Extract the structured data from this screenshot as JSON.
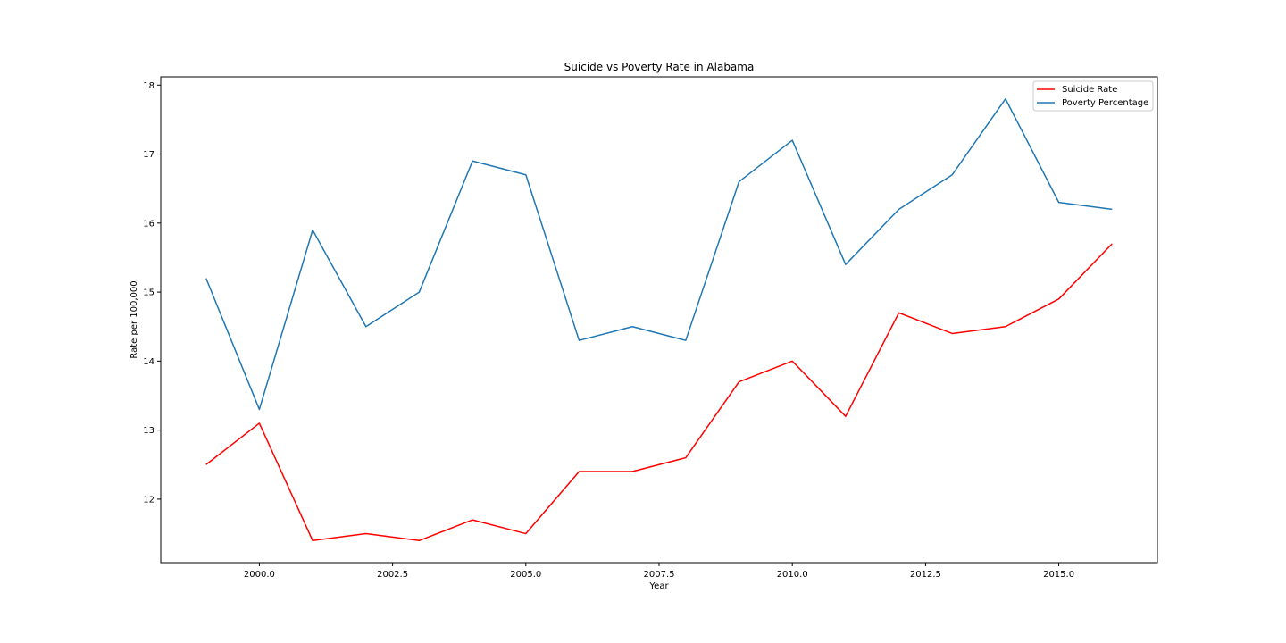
{
  "chart_data": {
    "type": "line",
    "title": "Suicide vs Poverty Rate in Alabama",
    "xlabel": "Year",
    "ylabel": "Rate per 100,000",
    "x": [
      1999,
      2000,
      2001,
      2002,
      2003,
      2004,
      2005,
      2006,
      2007,
      2008,
      2009,
      2010,
      2011,
      2012,
      2013,
      2014,
      2015,
      2016
    ],
    "series": [
      {
        "name": "Suicide Rate",
        "color": "#ff0000",
        "values": [
          12.5,
          13.1,
          11.4,
          11.5,
          11.4,
          11.7,
          11.5,
          12.4,
          12.4,
          12.6,
          13.7,
          14.0,
          13.2,
          14.7,
          14.4,
          14.5,
          14.9,
          15.7
        ]
      },
      {
        "name": "Poverty Percentage",
        "color": "#1f77b4",
        "values": [
          15.2,
          13.3,
          15.9,
          14.5,
          15.0,
          16.9,
          16.7,
          14.3,
          14.5,
          14.3,
          16.6,
          17.2,
          15.4,
          16.2,
          16.7,
          17.8,
          16.3,
          16.2
        ]
      }
    ],
    "xlim": [
      1998.15,
      2016.85
    ],
    "ylim": [
      11.08,
      18.12
    ],
    "xticks": [
      2000.0,
      2002.5,
      2005.0,
      2007.5,
      2010.0,
      2012.5,
      2015.0
    ],
    "xtick_labels": [
      "2000.0",
      "2002.5",
      "2005.0",
      "2007.5",
      "2010.0",
      "2012.5",
      "2015.0"
    ],
    "yticks": [
      12,
      13,
      14,
      15,
      16,
      17,
      18
    ],
    "ytick_labels": [
      "12",
      "13",
      "14",
      "15",
      "16",
      "17",
      "18"
    ],
    "grid": false,
    "legend_position": "top-right"
  }
}
